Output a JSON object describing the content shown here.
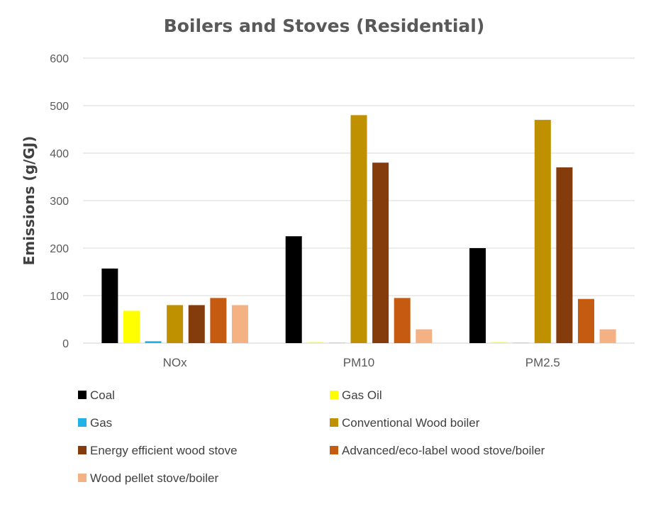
{
  "chart_data": {
    "type": "bar",
    "title": "Boilers and Stoves (Residential)",
    "xlabel": "",
    "ylabel": "Emissions (g/GJ)",
    "ylim": [
      0,
      600
    ],
    "yticks": [
      0,
      100,
      200,
      300,
      400,
      500,
      600
    ],
    "grid": true,
    "legend_position": "bottom",
    "categories": [
      "NOx",
      "PM10",
      "PM2.5"
    ],
    "series": [
      {
        "name": "Coal",
        "color": "#000000",
        "values": [
          157,
          225,
          200
        ]
      },
      {
        "name": "Gas Oil",
        "color": "#ffff00",
        "values": [
          68,
          2,
          2
        ]
      },
      {
        "name": "Gas",
        "color": "#1fb3e8",
        "values": [
          4,
          0.5,
          0.5
        ]
      },
      {
        "name": "Conventional Wood boiler",
        "color": "#bf9000",
        "values": [
          80,
          480,
          470
        ]
      },
      {
        "name": "Energy efficient wood stove",
        "color": "#843c0c",
        "values": [
          80,
          380,
          370
        ]
      },
      {
        "name": "Advanced/eco-label wood stove/boiler",
        "color": "#c55a11",
        "values": [
          95,
          95,
          93
        ]
      },
      {
        "name": "Wood pellet stove/boiler",
        "color": "#f4b183",
        "values": [
          80,
          29,
          29
        ]
      }
    ]
  }
}
